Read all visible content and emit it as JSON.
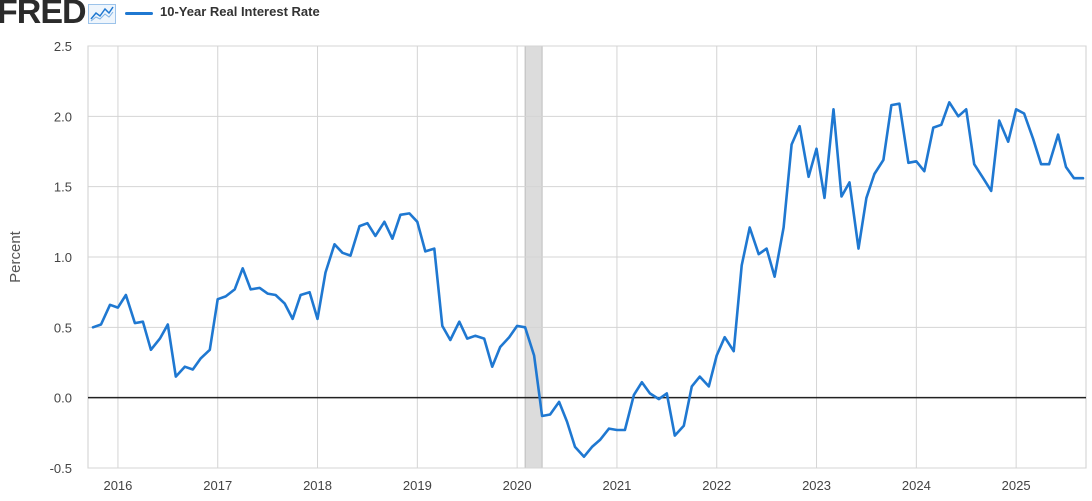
{
  "header": {
    "logo": "FRED",
    "spark_icon": "line-chart-icon",
    "legend_label": "10-Year Real Interest Rate",
    "line_color": "#1f78d1"
  },
  "chart_data": {
    "type": "line",
    "title": "10-Year Real Interest Rate",
    "xlabel": "",
    "ylabel": "Percent",
    "xlim": [
      2015.7,
      2025.7
    ],
    "ylim": [
      -0.5,
      2.5
    ],
    "yticks": [
      -0.5,
      0.0,
      0.5,
      1.0,
      1.5,
      2.0,
      2.5
    ],
    "ytick_labels": [
      "-0.5",
      "0.0",
      "0.5",
      "1.0",
      "1.5",
      "2.0",
      "2.5"
    ],
    "xticks": [
      2016,
      2017,
      2018,
      2019,
      2020,
      2021,
      2022,
      2023,
      2024,
      2025
    ],
    "xtick_labels": [
      "2016",
      "2017",
      "2018",
      "2019",
      "2020",
      "2021",
      "2022",
      "2023",
      "2024",
      "2025"
    ],
    "grid": true,
    "zero_line": 0.0,
    "recession": [
      2020.08,
      2020.25
    ],
    "series": [
      {
        "name": "10-Year Real Interest Rate",
        "color": "#1f78d1",
        "x": [
          2015.75,
          2015.83,
          2015.92,
          2016.0,
          2016.08,
          2016.17,
          2016.25,
          2016.33,
          2016.42,
          2016.5,
          2016.58,
          2016.67,
          2016.75,
          2016.83,
          2016.92,
          2017.0,
          2017.08,
          2017.17,
          2017.25,
          2017.33,
          2017.42,
          2017.5,
          2017.58,
          2017.67,
          2017.75,
          2017.83,
          2017.92,
          2018.0,
          2018.08,
          2018.17,
          2018.25,
          2018.33,
          2018.42,
          2018.5,
          2018.58,
          2018.67,
          2018.75,
          2018.83,
          2018.92,
          2019.0,
          2019.08,
          2019.17,
          2019.25,
          2019.33,
          2019.42,
          2019.5,
          2019.58,
          2019.67,
          2019.75,
          2019.83,
          2019.92,
          2020.0,
          2020.08,
          2020.17,
          2020.25,
          2020.33,
          2020.42,
          2020.5,
          2020.58,
          2020.67,
          2020.75,
          2020.83,
          2020.92,
          2021.0,
          2021.08,
          2021.17,
          2021.25,
          2021.33,
          2021.42,
          2021.5,
          2021.58,
          2021.67,
          2021.75,
          2021.83,
          2021.92,
          2022.0,
          2022.08,
          2022.17,
          2022.25,
          2022.33,
          2022.42,
          2022.5,
          2022.58,
          2022.67,
          2022.75,
          2022.83,
          2022.92,
          2023.0,
          2023.08,
          2023.17,
          2023.25,
          2023.33,
          2023.42,
          2023.5,
          2023.58,
          2023.67,
          2023.75,
          2023.83,
          2023.92,
          2024.0,
          2024.08,
          2024.17,
          2024.25,
          2024.33,
          2024.42,
          2024.5,
          2024.58,
          2024.67,
          2024.75,
          2024.83,
          2024.92,
          2025.0,
          2025.08,
          2025.17,
          2025.25,
          2025.33,
          2025.42,
          2025.5,
          2025.58,
          2025.67
        ],
        "values": [
          0.5,
          0.52,
          0.66,
          0.64,
          0.73,
          0.53,
          0.54,
          0.34,
          0.42,
          0.52,
          0.15,
          0.22,
          0.2,
          0.28,
          0.34,
          0.7,
          0.72,
          0.77,
          0.92,
          0.77,
          0.78,
          0.74,
          0.73,
          0.67,
          0.56,
          0.73,
          0.75,
          0.56,
          0.89,
          1.09,
          1.03,
          1.01,
          1.22,
          1.24,
          1.15,
          1.25,
          1.13,
          1.3,
          1.31,
          1.25,
          1.04,
          1.06,
          0.51,
          0.41,
          0.54,
          0.42,
          0.44,
          0.42,
          0.22,
          0.36,
          0.43,
          0.51,
          0.5,
          0.3,
          -0.13,
          -0.12,
          -0.03,
          -0.17,
          -0.35,
          -0.42,
          -0.35,
          -0.3,
          -0.22,
          -0.23,
          -0.23,
          0.02,
          0.11,
          0.03,
          -0.01,
          0.03,
          -0.27,
          -0.2,
          0.08,
          0.15,
          0.08,
          0.3,
          0.43,
          0.33,
          0.94,
          1.21,
          1.02,
          1.06,
          0.86,
          1.21,
          1.8,
          1.93,
          1.57,
          1.77,
          1.42,
          2.05,
          1.43,
          1.53,
          1.06,
          1.42,
          1.59,
          1.69,
          2.08,
          2.09,
          1.67,
          1.68,
          1.61,
          1.92,
          1.94,
          2.1,
          2.0,
          2.05,
          1.66,
          1.56,
          1.47,
          1.97,
          1.82,
          2.05,
          2.02,
          1.84,
          1.66,
          1.66,
          1.87,
          1.64,
          1.56,
          1.56
        ]
      }
    ]
  }
}
